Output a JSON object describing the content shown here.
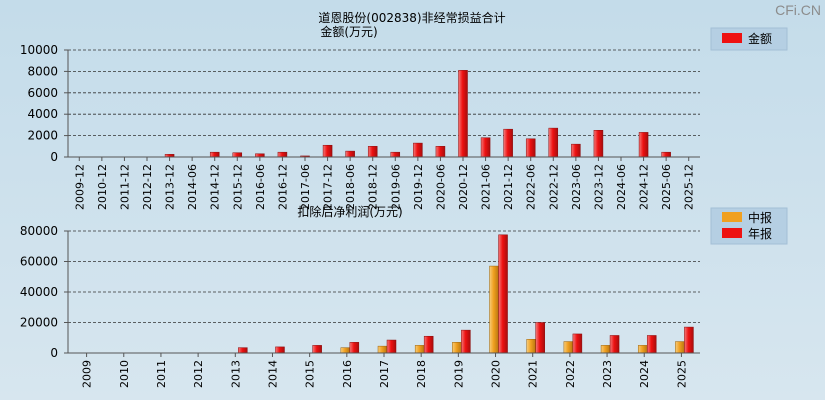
{
  "watermark": "CFi.CN",
  "chart_data": [
    {
      "type": "bar",
      "title": "道恩股份(002838)非经常损益合计",
      "ylabel": "金额(万元)",
      "ylim": [
        0,
        10000
      ],
      "yticks": [
        0,
        2000,
        4000,
        6000,
        8000,
        10000
      ],
      "grid": true,
      "legend_position": "top-right",
      "categories": [
        "2009-12",
        "2010-12",
        "2011-12",
        "2012-12",
        "2013-12",
        "2014-06",
        "2014-12",
        "2015-12",
        "2016-06",
        "2016-12",
        "2017-06",
        "2017-12",
        "2018-06",
        "2018-12",
        "2019-06",
        "2019-12",
        "2020-06",
        "2020-12",
        "2021-06",
        "2021-12",
        "2022-06",
        "2022-12",
        "2023-06",
        "2023-12",
        "2024-06",
        "2024-12",
        "2025-06",
        "2025-12"
      ],
      "series": [
        {
          "name": "金额",
          "color": "#ee1111",
          "values": [
            null,
            null,
            null,
            null,
            250,
            null,
            450,
            400,
            300,
            450,
            100,
            1100,
            550,
            1000,
            450,
            1300,
            1000,
            8100,
            1800,
            2600,
            1700,
            2700,
            1200,
            2500,
            null,
            2300,
            450,
            null
          ]
        }
      ]
    },
    {
      "type": "bar",
      "title": "扣除后净利润(万元)",
      "ylim": [
        0,
        80000
      ],
      "yticks": [
        0,
        20000,
        40000,
        60000,
        80000
      ],
      "grid": true,
      "legend_position": "top-right",
      "categories": [
        "2009",
        "2010",
        "2011",
        "2012",
        "2013",
        "2014",
        "2015",
        "2016",
        "2017",
        "2018",
        "2019",
        "2020",
        "2021",
        "2022",
        "2023",
        "2024",
        "2025"
      ],
      "series": [
        {
          "name": "中报",
          "color": "#f0a020",
          "values": [
            null,
            null,
            null,
            null,
            null,
            null,
            null,
            3500,
            4500,
            5000,
            7000,
            57000,
            9000,
            7500,
            5000,
            5000,
            7500
          ]
        },
        {
          "name": "年报",
          "color": "#ee1111",
          "values": [
            null,
            null,
            null,
            null,
            3500,
            4000,
            5000,
            7000,
            8500,
            11000,
            15000,
            77500,
            20000,
            12500,
            11500,
            11500,
            17000
          ]
        }
      ]
    }
  ]
}
